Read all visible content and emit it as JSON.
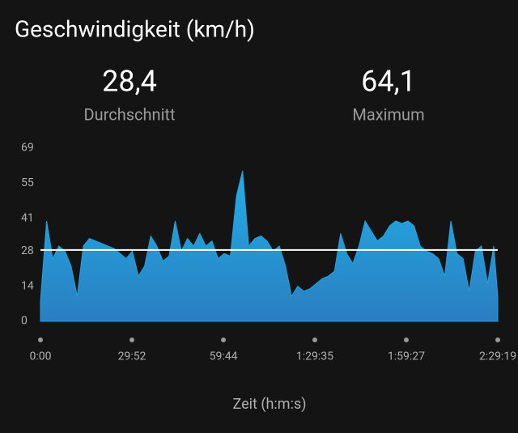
{
  "chart_data": {
    "type": "area",
    "title": "Geschwindigkeit (km/h)",
    "summary": [
      {
        "value": 28.4,
        "label": "28,4",
        "caption": "Durchschnitt"
      },
      {
        "value": 64.1,
        "label": "64,1",
        "caption": "Maximum"
      }
    ],
    "x_label": "Zeit (h:m:s)",
    "x": [
      0,
      120,
      240,
      360,
      480,
      600,
      720,
      840,
      960,
      1080,
      1200,
      1320,
      1440,
      1560,
      1680,
      1800,
      1920,
      2040,
      2160,
      2280,
      2400,
      2520,
      2640,
      2760,
      2880,
      3000,
      3120,
      3240,
      3360,
      3480,
      3600,
      3720,
      3840,
      3960,
      4080,
      4200,
      4320,
      4440,
      4560,
      4680,
      4800,
      4920,
      5040,
      5160,
      5280,
      5400,
      5520,
      5640,
      5760,
      5880,
      6000,
      6120,
      6240,
      6360,
      6480,
      6600,
      6720,
      6840,
      6960,
      7080,
      7200,
      7320,
      7440,
      7560,
      7680,
      7800,
      7920,
      8040,
      8160,
      8280,
      8400,
      8520,
      8640,
      8760,
      8880,
      8959
    ],
    "series": [
      {
        "name": "Geschwindigkeit",
        "color": "#1ea3df",
        "values": [
          8,
          40,
          25,
          30,
          28,
          22,
          10,
          30,
          33,
          32,
          31,
          30,
          29,
          27,
          25,
          28,
          18,
          22,
          34,
          30,
          24,
          26,
          40,
          28,
          33,
          30,
          35,
          30,
          32,
          25,
          27,
          26,
          50,
          60,
          30,
          33,
          34,
          32,
          28,
          30,
          22,
          10,
          14,
          12,
          13,
          15,
          17,
          18,
          20,
          35,
          27,
          23,
          30,
          40,
          36,
          32,
          34,
          38,
          40,
          39,
          40,
          38,
          30,
          28,
          27,
          25,
          18,
          40,
          27,
          25,
          12,
          28,
          30,
          15,
          30,
          10
        ]
      }
    ],
    "xlim": [
      0,
      8959
    ],
    "ylim": [
      0,
      69
    ],
    "yticks": [
      0,
      14,
      28,
      41,
      55,
      69
    ],
    "xticks": [
      {
        "value": 0,
        "label": "0:00"
      },
      {
        "value": 1792,
        "label": "29:52"
      },
      {
        "value": 3584,
        "label": "59:44"
      },
      {
        "value": 5375,
        "label": "1:29:35"
      },
      {
        "value": 7167,
        "label": "1:59:27"
      },
      {
        "value": 8959,
        "label": "2:29:19"
      }
    ]
  }
}
